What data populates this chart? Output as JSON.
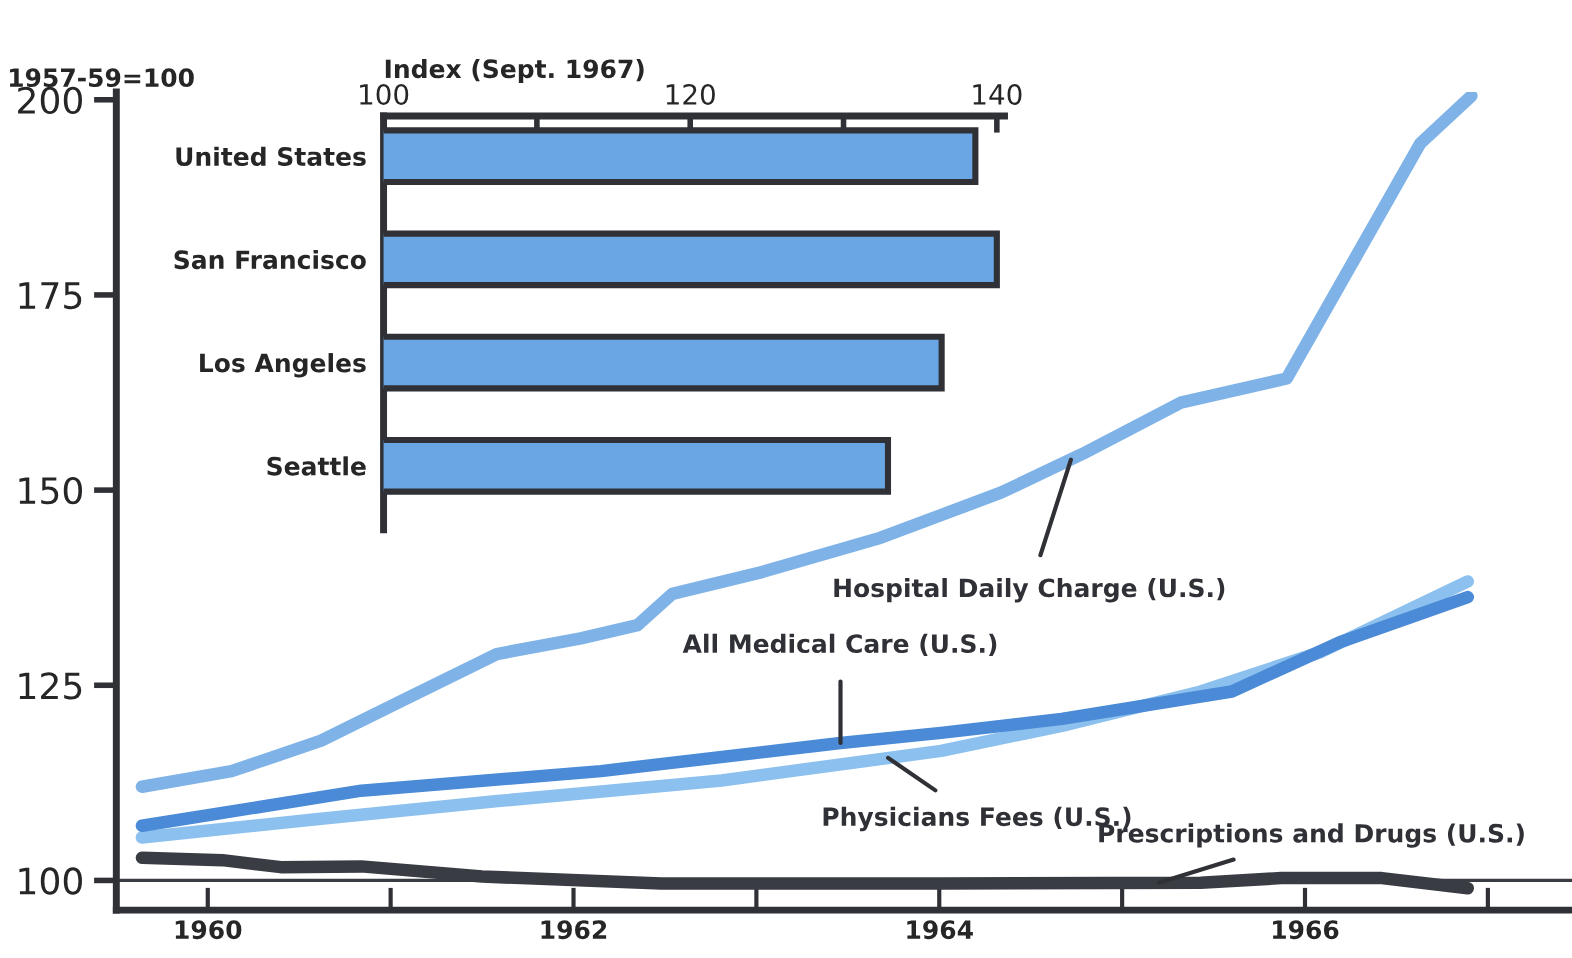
{
  "chart_data": [
    {
      "type": "line",
      "ylabel": "1957-59=100",
      "xlim": [
        1959.5,
        1967.46
      ],
      "ylim": [
        96.2,
        201
      ],
      "xticks": [
        {
          "value": 1960,
          "label": "1960"
        },
        {
          "value": 1961,
          "label": null
        },
        {
          "value": 1962,
          "label": "1962"
        },
        {
          "value": 1963,
          "label": null
        },
        {
          "value": 1964,
          "label": "1964"
        },
        {
          "value": 1965,
          "label": null
        },
        {
          "value": 1966,
          "label": "1966"
        },
        {
          "value": 1967,
          "label": null
        }
      ],
      "yticks": [
        100,
        125,
        150,
        175,
        200
      ],
      "grid": false,
      "legend": false,
      "series": [
        {
          "color": "#7fb3e8",
          "x": [
            1959.64,
            1960.13,
            1960.62,
            1961.06,
            1961.58,
            1962.04,
            1962.35,
            1962.54,
            1963.03,
            1963.68,
            1964.34,
            1964.78,
            1965.32,
            1965.9,
            1966.63,
            1966.91
          ],
          "values": [
            112,
            114,
            117.9,
            123,
            129,
            131,
            132.7,
            136.7,
            139.5,
            143.9,
            149.7,
            154.6,
            161.2,
            164.3,
            194.4,
            200.5
          ]
        },
        {
          "color": "#8cc0ee",
          "x": [
            1959.64,
            1960.62,
            1961.6,
            1962.81,
            1964.01,
            1964.67,
            1965.43,
            1966.09,
            1966.89
          ],
          "values": [
            105.5,
            107.9,
            110.2,
            112.8,
            116.6,
            119.8,
            124.2,
            129.3,
            138.3
          ]
        },
        {
          "color": "#4a8ad6",
          "x": [
            1959.64,
            1960.84,
            1962.15,
            1963.46,
            1964.01,
            1964.67,
            1965.6,
            1966.2,
            1966.89
          ],
          "values": [
            107,
            111.5,
            114,
            117.6,
            118.9,
            120.7,
            124.2,
            130.6,
            136.3
          ]
        },
        {
          "color": "#3a3c44",
          "x": [
            1959.64,
            1960.08,
            1960.4,
            1960.84,
            1961.5,
            1962.48,
            1964.01,
            1965.43,
            1965.87,
            1966.42,
            1966.89
          ],
          "values": [
            102.9,
            102.6,
            101.7,
            101.8,
            100.5,
            99.6,
            99.6,
            99.7,
            100.3,
            100.3,
            99.0
          ]
        }
      ],
      "ref_lines": [
        {
          "axis": "y",
          "value": 100,
          "color": "#3a3c44"
        }
      ],
      "annotations": [
        {
          "text": "Hospital Daily Charge (U.S.)",
          "x": 1964.72,
          "y": 153.9
        },
        {
          "text": "All Medical Care (U.S.)",
          "x": 1963.46,
          "y": 117.6
        },
        {
          "text": "Physicians Fees (U.S.)",
          "x": 1963.72,
          "y": 115.7
        },
        {
          "text": "Prescriptions and Drugs (U.S.)",
          "x": 1965.2,
          "y": 99.7
        }
      ]
    },
    {
      "type": "bar",
      "orientation": "horizontal",
      "xlabel": "Index (Sept. 1967)",
      "categories": [
        "United States",
        "San Francisco",
        "Los Angeles",
        "Seattle"
      ],
      "values": [
        138.6,
        140,
        136.4,
        132.9
      ],
      "color": "#6aa6e4",
      "xlim": [
        100,
        140.5
      ],
      "xticks": [
        100,
        {
          "value": 110,
          "label": null
        },
        120,
        {
          "value": 130,
          "label": null
        },
        140
      ],
      "grid": false
    }
  ]
}
